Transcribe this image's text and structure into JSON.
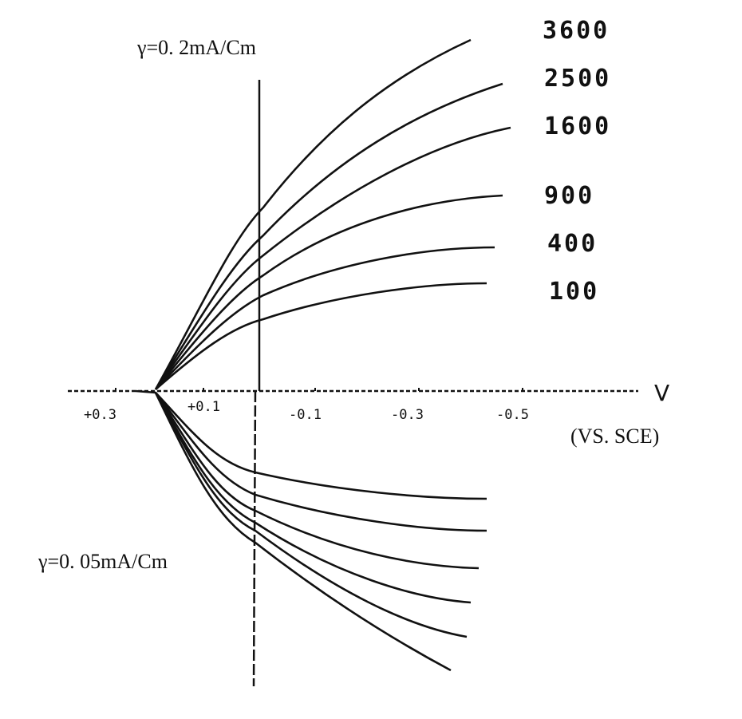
{
  "top_scale": "γ=0. 2mA/Cm",
  "bottom_scale": "γ=0. 05mA/Cm",
  "speed_labels": [
    "3600",
    "2500",
    "1600",
    "900",
    "400",
    "100"
  ],
  "axis": {
    "label": "V",
    "reference": "(VS. SCE)",
    "ticks": [
      "+0.3",
      "+0.1",
      "-0.1",
      "-0.3",
      "-0.5"
    ]
  }
}
